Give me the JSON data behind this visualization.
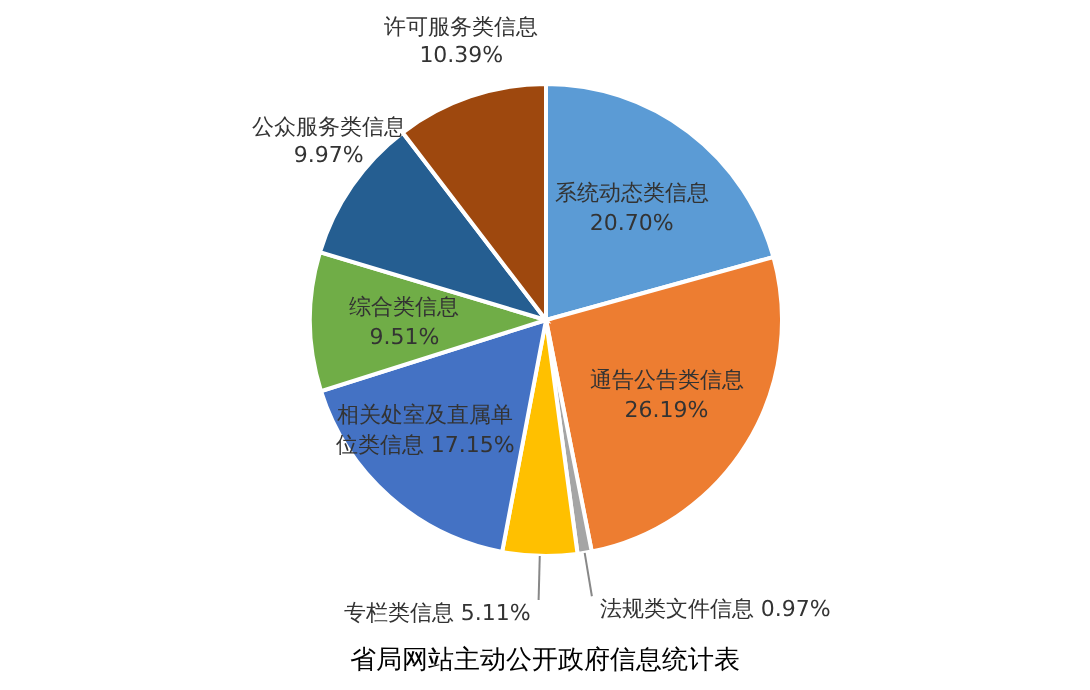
{
  "chart_data": {
    "type": "pie",
    "title": "省局网站主动公开政府信息统计表",
    "categories": [
      "系统动态类信息",
      "通告公告类信息",
      "法规类文件信息",
      "专栏类信息",
      "相关处室及直属单位类信息",
      "综合类信息",
      "公众服务类信息",
      "许可服务类信息"
    ],
    "values": [
      20.7,
      26.19,
      0.97,
      5.11,
      17.15,
      9.51,
      9.97,
      10.39
    ],
    "value_labels": [
      "20.70%",
      "26.19%",
      "0.97%",
      "5.11%",
      "17.15%",
      "9.51%",
      "9.97%",
      "10.39%"
    ],
    "colors": [
      "#5b9bd5",
      "#ed7d31",
      "#a5a5a5",
      "#ffc000",
      "#4472c4",
      "#70ad47",
      "#255e91",
      "#9e480e"
    ]
  }
}
